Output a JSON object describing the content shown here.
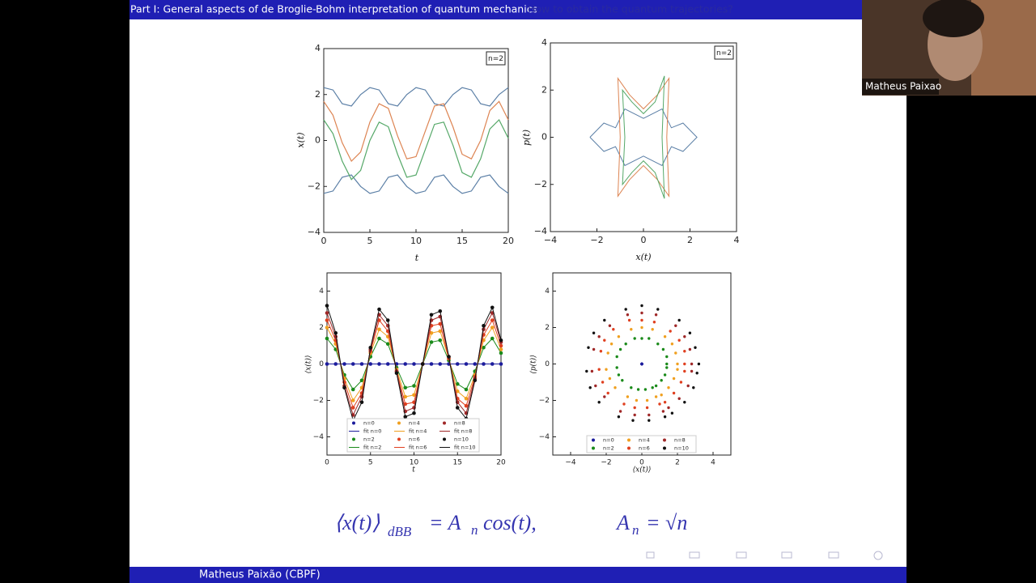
{
  "header": {
    "title": "Part I: General aspects of de Broglie-Bohm interpretation of quantum mechanics",
    "subtitle": "How to obtain the quantum trajectories?"
  },
  "video": {
    "name": "Matheus Paixao"
  },
  "footer": {
    "author": "Matheus Paixão  (CBPF)"
  },
  "formula": {
    "left": "⟨x(t)⟩",
    "left_sub": "dBB",
    "eq": "= A",
    "eq_sub": "n",
    "tail": "cos(t),",
    "right": "A",
    "right_sub": "n",
    "right_eq": "= √n"
  },
  "chart_data": [
    {
      "type": "line",
      "annotation": "n=2",
      "xlabel": "t",
      "ylabel": "x(t)",
      "xlim": [
        0,
        20
      ],
      "ylim": [
        -4,
        4
      ],
      "xticks": [
        0,
        5,
        10,
        15,
        20
      ],
      "yticks": [
        {
          "value": -4,
          "label": "−4"
        },
        {
          "value": -2,
          "label": "−2"
        },
        0,
        2,
        4
      ],
      "x": [
        0,
        1,
        2,
        3,
        4,
        5,
        6,
        7,
        8,
        9,
        10,
        11,
        12,
        13,
        14,
        15,
        16,
        17,
        18,
        19,
        20
      ],
      "series": [
        {
          "color": "#5b7fa6",
          "values": [
            2.3,
            2.2,
            1.6,
            1.5,
            2.0,
            2.3,
            2.2,
            1.6,
            1.5,
            2.0,
            2.3,
            2.2,
            1.6,
            1.5,
            2.0,
            2.3,
            2.2,
            1.6,
            1.5,
            2.0,
            2.3
          ]
        },
        {
          "color": "#5b7fa6",
          "values": [
            -2.3,
            -2.2,
            -1.6,
            -1.5,
            -2.0,
            -2.3,
            -2.2,
            -1.6,
            -1.5,
            -2.0,
            -2.3,
            -2.2,
            -1.6,
            -1.5,
            -2.0,
            -2.3,
            -2.2,
            -1.6,
            -1.5,
            -2.0,
            -2.3
          ]
        },
        {
          "color": "#dd8452",
          "values": [
            1.7,
            1.1,
            -0.1,
            -0.9,
            -0.5,
            0.8,
            1.6,
            1.4,
            0.2,
            -0.8,
            -0.7,
            0.4,
            1.5,
            1.6,
            0.6,
            -0.6,
            -0.8,
            0.0,
            1.3,
            1.7,
            0.9
          ]
        },
        {
          "color": "#55a868",
          "values": [
            0.9,
            0.3,
            -0.9,
            -1.7,
            -1.3,
            0.0,
            0.8,
            0.6,
            -0.6,
            -1.6,
            -1.5,
            -0.4,
            0.7,
            0.8,
            -0.2,
            -1.4,
            -1.6,
            -0.8,
            0.5,
            0.9,
            0.1
          ]
        }
      ]
    },
    {
      "type": "trajectory",
      "annotation": "n=2",
      "xlabel": "x(t)",
      "ylabel": "p(t)",
      "xlim": [
        -4,
        4
      ],
      "ylim": [
        -4,
        4
      ],
      "xticks": [
        {
          "value": -4,
          "label": "−4"
        },
        {
          "value": -2,
          "label": "−2"
        },
        0,
        2,
        4
      ],
      "yticks": [
        {
          "value": -4,
          "label": "−4"
        },
        {
          "value": -2,
          "label": "−2"
        },
        0,
        2,
        4
      ],
      "series": [
        {
          "color": "#5b7fa6",
          "x": [
            -2.3,
            -1.7,
            -1.2,
            -0.8,
            0,
            0.8,
            1.2,
            1.7,
            2.3,
            1.7,
            1.2,
            0.8,
            0,
            -0.8,
            -1.2,
            -1.7,
            -2.3
          ],
          "values": [
            0,
            0.6,
            0.4,
            1.2,
            0.8,
            1.2,
            0.4,
            0.6,
            0,
            -0.6,
            -0.4,
            -1.2,
            -0.8,
            -1.2,
            -0.4,
            -0.6,
            0
          ]
        },
        {
          "color": "#dd8452",
          "x": [
            -1.0,
            -1.1,
            -0.6,
            0,
            0.6,
            1.1,
            1.0,
            1.1,
            0.6,
            0,
            -0.6,
            -1.1,
            -1.0
          ],
          "values": [
            0,
            2.5,
            1.8,
            1.2,
            1.8,
            2.5,
            0,
            -2.5,
            -1.8,
            -1.2,
            -1.8,
            -2.5,
            0
          ]
        },
        {
          "color": "#55a868",
          "x": [
            -0.8,
            -0.9,
            -0.5,
            0,
            0.5,
            0.9,
            0.8,
            0.9,
            0.5,
            0,
            -0.5,
            -0.9,
            -0.8
          ],
          "values": [
            0,
            2.0,
            1.5,
            1.0,
            1.5,
            2.6,
            0,
            -2.6,
            -1.5,
            -1.0,
            -1.5,
            -2.0,
            0
          ]
        }
      ]
    },
    {
      "type": "line",
      "xlabel": "t",
      "ylabel": "⟨x(t)⟩",
      "legend": true,
      "xlim": [
        0,
        20
      ],
      "ylim": [
        -5,
        5
      ],
      "xticks": [
        0,
        5,
        10,
        15,
        20
      ],
      "yticks": [
        {
          "value": -4,
          "label": "−4"
        },
        {
          "value": -2,
          "label": "−2"
        },
        0,
        2,
        4
      ],
      "x": [
        0,
        1,
        2,
        3,
        4,
        5,
        6,
        7,
        8,
        9,
        10,
        11,
        12,
        13,
        14,
        15,
        16,
        17,
        18,
        19,
        20
      ],
      "series": [
        {
          "name": "n=0",
          "kind": "points",
          "color": "#1c1c9c",
          "values": [
            0,
            0,
            0,
            0,
            0,
            0,
            0,
            0,
            0,
            0,
            0,
            0,
            0,
            0,
            0,
            0,
            0,
            0,
            0,
            0,
            0
          ]
        },
        {
          "name": "fit n=0",
          "kind": "line",
          "color": "#1c1c9c",
          "values": [
            0,
            0,
            0,
            0,
            0,
            0,
            0,
            0,
            0,
            0,
            0,
            0,
            0,
            0,
            0,
            0,
            0,
            0,
            0,
            0,
            0
          ]
        },
        {
          "name": "n=2",
          "kind": "points",
          "color": "#1a8a1a",
          "values": [
            1.4,
            0.8,
            -0.6,
            -1.4,
            -0.9,
            0.4,
            1.4,
            1.1,
            -0.2,
            -1.3,
            -1.2,
            0.0,
            1.2,
            1.3,
            0.2,
            -1.1,
            -1.4,
            -0.4,
            0.9,
            1.4,
            0.6
          ]
        },
        {
          "name": "fit n=2",
          "kind": "line",
          "color": "#1a8a1a",
          "values": [
            1.4,
            0.8,
            -0.6,
            -1.4,
            -0.9,
            0.4,
            1.4,
            1.1,
            -0.2,
            -1.3,
            -1.2,
            0.0,
            1.2,
            1.3,
            0.2,
            -1.1,
            -1.4,
            -0.4,
            0.9,
            1.4,
            0.6
          ]
        },
        {
          "name": "n=4",
          "kind": "points",
          "color": "#f0a020",
          "values": [
            2.0,
            1.1,
            -0.8,
            -2.0,
            -1.3,
            0.6,
            1.9,
            1.5,
            -0.3,
            -1.8,
            -1.7,
            0.0,
            1.7,
            1.8,
            0.3,
            -1.5,
            -1.9,
            -0.6,
            1.3,
            2.0,
            0.8
          ]
        },
        {
          "name": "fit n=4",
          "kind": "line",
          "color": "#f0a020",
          "values": [
            2.0,
            1.1,
            -0.8,
            -2.0,
            -1.3,
            0.6,
            1.9,
            1.5,
            -0.3,
            -1.8,
            -1.7,
            0.0,
            1.7,
            1.8,
            0.3,
            -1.5,
            -1.9,
            -0.6,
            1.3,
            2.0,
            0.8
          ]
        },
        {
          "name": "n=6",
          "kind": "points",
          "color": "#e04020",
          "values": [
            2.4,
            1.3,
            -1.0,
            -2.4,
            -1.6,
            0.7,
            2.4,
            1.8,
            -0.4,
            -2.2,
            -2.1,
            0.0,
            2.1,
            2.2,
            0.3,
            -1.9,
            -2.3,
            -0.7,
            1.6,
            2.4,
            1.0
          ]
        },
        {
          "name": "fit n=6",
          "kind": "line",
          "color": "#e04020",
          "values": [
            2.4,
            1.3,
            -1.0,
            -2.4,
            -1.6,
            0.7,
            2.4,
            1.8,
            -0.4,
            -2.2,
            -2.1,
            0.0,
            2.1,
            2.2,
            0.3,
            -1.9,
            -2.3,
            -0.7,
            1.6,
            2.4,
            1.0
          ]
        },
        {
          "name": "n=8",
          "kind": "points",
          "color": "#a02828",
          "values": [
            2.8,
            1.5,
            -1.2,
            -2.8,
            -1.8,
            0.8,
            2.7,
            2.1,
            -0.4,
            -2.6,
            -2.4,
            0.0,
            2.4,
            2.6,
            0.4,
            -2.1,
            -2.7,
            -0.8,
            1.9,
            2.8,
            1.2
          ]
        },
        {
          "name": "fit n=8",
          "kind": "line",
          "color": "#a02828",
          "values": [
            2.8,
            1.5,
            -1.2,
            -2.8,
            -1.8,
            0.8,
            2.7,
            2.1,
            -0.4,
            -2.6,
            -2.4,
            0.0,
            2.4,
            2.6,
            0.4,
            -2.1,
            -2.7,
            -0.8,
            1.9,
            2.8,
            1.2
          ]
        },
        {
          "name": "n=10",
          "kind": "points",
          "color": "#111111",
          "values": [
            3.2,
            1.7,
            -1.3,
            -3.1,
            -2.1,
            0.9,
            3.0,
            2.4,
            -0.5,
            -2.9,
            -2.7,
            0.0,
            2.7,
            2.9,
            0.4,
            -2.4,
            -3.0,
            -0.9,
            2.1,
            3.1,
            1.3
          ]
        },
        {
          "name": "fit n=10",
          "kind": "line",
          "color": "#111111",
          "values": [
            3.2,
            1.7,
            -1.3,
            -3.1,
            -2.1,
            0.9,
            3.0,
            2.4,
            -0.5,
            -2.9,
            -2.7,
            0.0,
            2.7,
            2.9,
            0.4,
            -2.4,
            -3.0,
            -0.9,
            2.1,
            3.1,
            1.3
          ]
        }
      ]
    },
    {
      "type": "scatter",
      "xlabel": "⟨x(t)⟩",
      "ylabel": "⟨p(t)⟩",
      "legend": true,
      "xlim": [
        -5,
        5
      ],
      "ylim": [
        -5,
        5
      ],
      "xticks": [
        {
          "value": -4,
          "label": "−4"
        },
        {
          "value": -2,
          "label": "−2"
        },
        0,
        2,
        4
      ],
      "yticks": [
        {
          "value": -4,
          "label": "−4"
        },
        {
          "value": -2,
          "label": "−2"
        },
        0,
        2,
        4
      ],
      "series": [
        {
          "name": "n=0",
          "color": "#1c1c9c",
          "x": [
            0,
            0,
            0,
            0,
            0,
            0,
            0,
            0,
            0,
            0,
            0,
            0,
            0,
            0,
            0,
            0,
            0,
            0,
            0,
            0,
            0
          ],
          "values": [
            0,
            0,
            0,
            0,
            0,
            0,
            0,
            0,
            0,
            0,
            0,
            0,
            0,
            0,
            0,
            0,
            0,
            0,
            0,
            0,
            0
          ]
        },
        {
          "name": "n=2",
          "color": "#1a8a1a",
          "x": [
            1.4,
            0.8,
            -0.6,
            -1.4,
            -0.9,
            0.4,
            1.4,
            1.1,
            -0.2,
            -1.3,
            -1.2,
            0.0,
            1.2,
            1.3,
            0.2,
            -1.1,
            -1.4,
            -0.4,
            0.9,
            1.4,
            0.6
          ],
          "values": [
            0,
            -1.2,
            -1.3,
            -0.2,
            1.1,
            1.4,
            0.4,
            -0.9,
            -1.4,
            -0.6,
            0.8,
            1.4,
            0.8,
            -0.6,
            -1.4,
            -0.9,
            0.4,
            1.4,
            1.1,
            -0.2,
            -1.3
          ]
        },
        {
          "name": "n=4",
          "color": "#f0a020",
          "x": [
            2.0,
            1.1,
            -0.8,
            -2.0,
            -1.3,
            0.6,
            1.9,
            1.5,
            -0.3,
            -1.8,
            -1.7,
            0.0,
            1.7,
            1.8,
            0.3,
            -1.5,
            -1.9,
            -0.6,
            1.3,
            2.0,
            0.8
          ],
          "values": [
            0,
            -1.7,
            -1.8,
            -0.3,
            1.5,
            1.9,
            0.6,
            -1.3,
            -2.0,
            -0.8,
            1.1,
            2.0,
            1.1,
            -0.8,
            -2.0,
            -1.3,
            0.6,
            1.9,
            1.5,
            -0.3,
            -1.8
          ]
        },
        {
          "name": "n=6",
          "color": "#e04020",
          "x": [
            2.4,
            1.3,
            -1.0,
            -2.4,
            -1.6,
            0.7,
            2.4,
            1.8,
            -0.4,
            -2.2,
            -2.1,
            0.0,
            2.1,
            2.2,
            0.3,
            -1.9,
            -2.3,
            -0.7,
            1.6,
            2.4,
            1.0
          ],
          "values": [
            0,
            -2.1,
            -2.2,
            -0.3,
            1.9,
            2.3,
            0.7,
            -1.6,
            -2.4,
            -1.0,
            1.3,
            2.4,
            1.3,
            -1.0,
            -2.4,
            -1.6,
            0.7,
            2.4,
            1.8,
            -0.4,
            -2.2
          ]
        },
        {
          "name": "n=8",
          "color": "#a02828",
          "x": [
            2.8,
            1.5,
            -1.2,
            -2.8,
            -1.8,
            0.8,
            2.7,
            2.1,
            -0.4,
            -2.6,
            -2.4,
            0.0,
            2.4,
            2.6,
            0.4,
            -2.1,
            -2.7,
            -0.8,
            1.9,
            2.8,
            1.2
          ],
          "values": [
            0,
            -2.4,
            -2.6,
            -0.4,
            2.1,
            2.7,
            0.8,
            -1.9,
            -2.8,
            -1.2,
            1.5,
            2.8,
            1.5,
            -1.2,
            -2.8,
            -1.8,
            0.8,
            2.7,
            2.1,
            -0.4,
            -2.6
          ]
        },
        {
          "name": "n=10",
          "color": "#111111",
          "x": [
            3.2,
            1.7,
            -1.3,
            -3.1,
            -2.1,
            0.9,
            3.0,
            2.4,
            -0.5,
            -2.9,
            -2.7,
            0.0,
            2.7,
            2.9,
            0.4,
            -2.4,
            -3.0,
            -0.9,
            2.1,
            3.1,
            1.3
          ],
          "values": [
            0,
            -2.7,
            -2.9,
            -0.4,
            2.4,
            3.0,
            0.9,
            -2.1,
            -3.1,
            -1.3,
            1.7,
            3.2,
            1.7,
            -1.3,
            -3.1,
            -2.1,
            0.9,
            3.0,
            2.4,
            -0.5,
            -2.9
          ]
        }
      ]
    }
  ]
}
